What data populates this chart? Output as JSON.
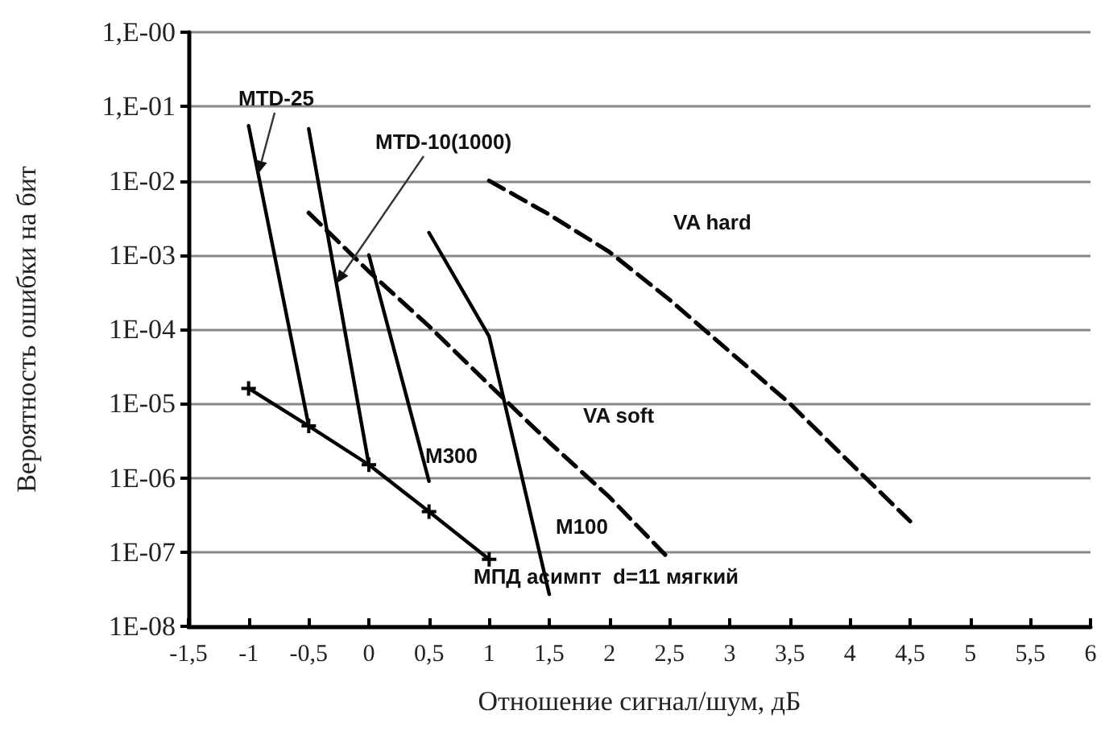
{
  "chart_data": {
    "type": "line",
    "xlabel": "Отношение сигнал/шум, дБ",
    "ylabel": "Вероятность ошибки на бит",
    "xlim": [
      -1.5,
      6
    ],
    "xticks": [
      {
        "value": -1.5,
        "label": "-1,5"
      },
      -1,
      {
        "value": -0.5,
        "label": "-0,5"
      },
      0,
      {
        "value": 0.5,
        "label": "0,5"
      },
      1,
      {
        "value": 1.5,
        "label": "1,5"
      },
      2,
      {
        "value": 2.5,
        "label": "2,5"
      },
      3,
      {
        "value": 3.5,
        "label": "3,5"
      },
      4,
      {
        "value": 4.5,
        "label": "4,5"
      },
      5,
      {
        "value": 5.5,
        "label": "5,5"
      },
      6
    ],
    "ylim": [
      1e-08,
      1
    ],
    "log": "y",
    "yticks": [
      {
        "value": 1,
        "label": "1,E-00"
      },
      {
        "value": 0.1,
        "label": "1,E-01"
      },
      {
        "value": 0.01,
        "label": "1E-02"
      },
      {
        "value": 0.001,
        "label": "1E-03"
      },
      {
        "value": 0.0001,
        "label": "1E-04"
      },
      {
        "value": 1e-05,
        "label": "1E-05"
      },
      {
        "value": 1e-06,
        "label": "1E-06"
      },
      {
        "value": 1e-07,
        "label": "1E-07"
      },
      {
        "value": 1e-08,
        "label": "1E-08"
      }
    ],
    "grid": "y",
    "legend": false,
    "series": [
      {
        "name": "MTD-25",
        "color": "#000000",
        "x": [
          -1,
          -0.5
        ],
        "values": [
          0.055,
          5e-06
        ],
        "line_style": "solid"
      },
      {
        "name": "MTD-10(1000)",
        "color": "#000000",
        "x": [
          -0.5,
          0
        ],
        "values": [
          0.05,
          1.5e-06
        ],
        "line_style": "solid"
      },
      {
        "name": "M300",
        "color": "#000000",
        "x": [
          0,
          0.5
        ],
        "values": [
          0.001,
          9e-07
        ],
        "line_style": "solid"
      },
      {
        "name": "M100",
        "color": "#000000",
        "x": [
          0.5,
          1,
          1.5
        ],
        "values": [
          0.002,
          8e-05,
          2.7e-08
        ],
        "line_style": "solid"
      },
      {
        "name": "МПД асимпт  d=11 мягкий",
        "color": "#000000",
        "x": [
          -1,
          -0.5,
          0,
          0.5,
          1
        ],
        "values": [
          1.6e-05,
          5e-06,
          1.5e-06,
          3.5e-07,
          8e-08
        ],
        "line_style": "solid",
        "marker": "cross"
      },
      {
        "name": "VA soft",
        "color": "#000000",
        "x": [
          -0.5,
          0,
          0.5,
          1,
          1.5,
          2,
          2.5
        ],
        "values": [
          0.0037,
          0.0006,
          0.00011,
          1.8e-05,
          3e-06,
          5.5e-07,
          8e-08
        ],
        "line_style": "dashed"
      },
      {
        "name": "VA hard",
        "color": "#000000",
        "x": [
          1,
          1.5,
          2,
          2.5,
          3,
          3.5,
          4,
          4.5
        ],
        "values": [
          0.01,
          0.0035,
          0.0011,
          0.00025,
          5e-05,
          1e-05,
          1.6e-06,
          2.6e-07
        ],
        "line_style": "dashed"
      }
    ]
  }
}
